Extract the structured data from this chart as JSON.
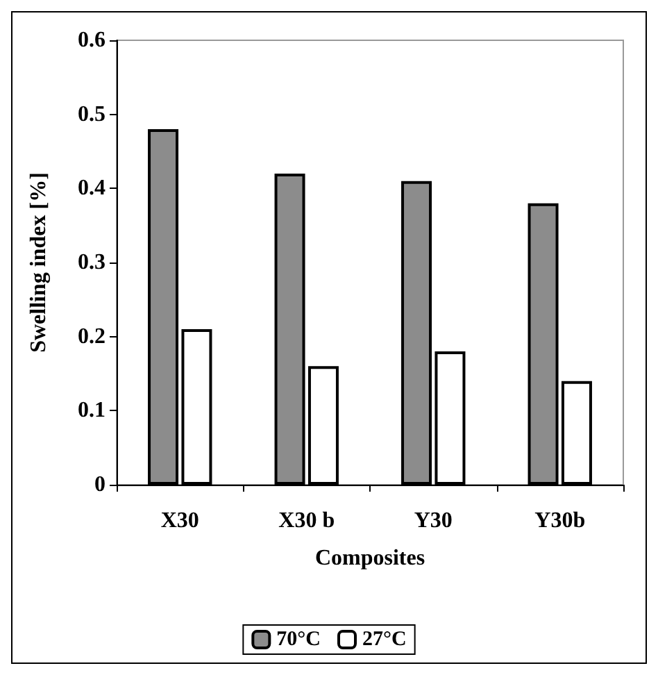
{
  "chart_data": {
    "type": "bar",
    "xlabel": "Composites",
    "ylabel": "Swelling index [%]",
    "categories": [
      "X30",
      "X30 b",
      "Y30",
      "Y30b"
    ],
    "series": [
      {
        "name": "70°C",
        "color": "#8c8c8c",
        "values": [
          0.48,
          0.42,
          0.41,
          0.38
        ]
      },
      {
        "name": "27°C",
        "color": "#ffffff",
        "values": [
          0.21,
          0.16,
          0.18,
          0.14
        ]
      }
    ],
    "ylim": [
      0,
      0.6
    ],
    "yticks": [
      0,
      0.1,
      0.2,
      0.3,
      0.4,
      0.5,
      0.6
    ],
    "grid": false,
    "legend": "bottom"
  }
}
